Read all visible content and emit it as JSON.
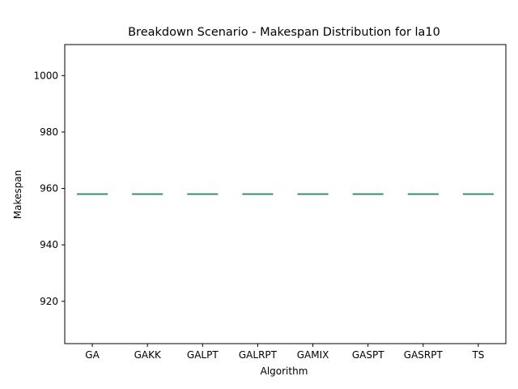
{
  "chart_data": {
    "type": "box",
    "title": "Breakdown Scenario - Makespan Distribution for la10",
    "xlabel": "Algorithm",
    "ylabel": "Makespan",
    "ylim": [
      905,
      1011
    ],
    "yticks": [
      920,
      940,
      960,
      980,
      1000
    ],
    "grid": false,
    "categories": [
      "GA",
      "GAKK",
      "GALPT",
      "GALRPT",
      "GAMIX",
      "GASPT",
      "GASRPT",
      "TS"
    ],
    "series": [
      {
        "values": [
          {
            "min": 958,
            "q1": 958,
            "median": 958,
            "q3": 958,
            "max": 958
          },
          {
            "min": 958,
            "q1": 958,
            "median": 958,
            "q3": 958,
            "max": 958
          },
          {
            "min": 958,
            "q1": 958,
            "median": 958,
            "q3": 958,
            "max": 958
          },
          {
            "min": 958,
            "q1": 958,
            "median": 958,
            "q3": 958,
            "max": 958
          },
          {
            "min": 958,
            "q1": 958,
            "median": 958,
            "q3": 958,
            "max": 958
          },
          {
            "min": 958,
            "q1": 958,
            "median": 958,
            "q3": 958,
            "max": 958
          },
          {
            "min": 958,
            "q1": 958,
            "median": 958,
            "q3": 958,
            "max": 958
          },
          {
            "min": 958,
            "q1": 958,
            "median": 958,
            "q3": 958,
            "max": 958
          }
        ]
      }
    ],
    "colors": {
      "box": "#5fa87a",
      "median": "#2e8b57",
      "axis": "#000000"
    }
  }
}
